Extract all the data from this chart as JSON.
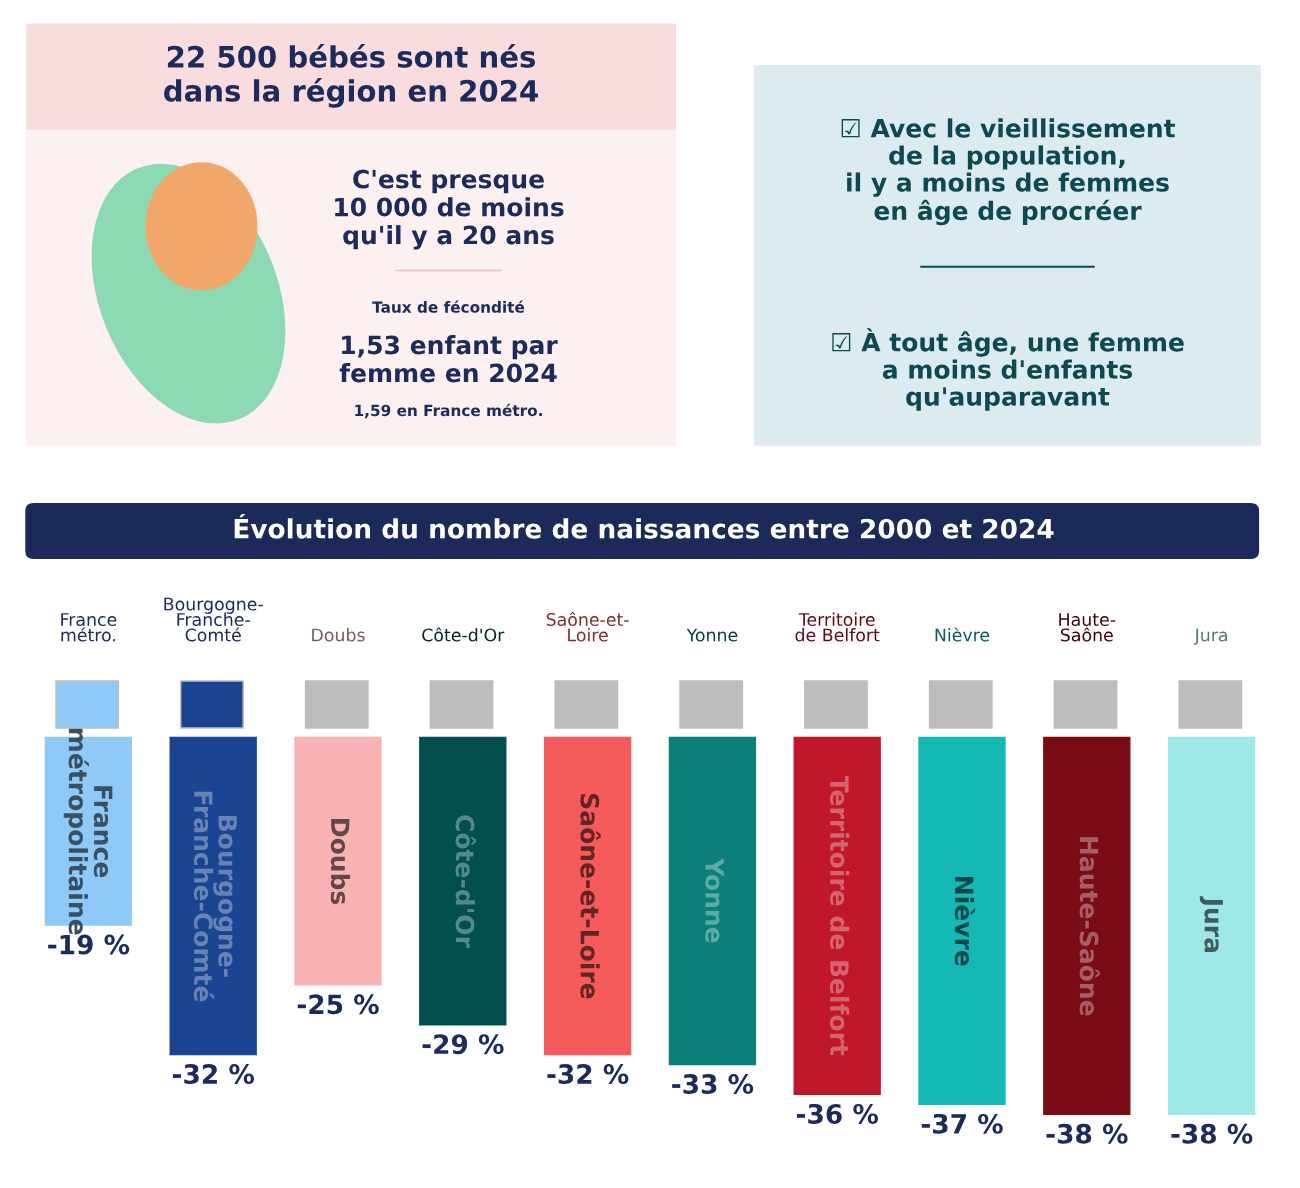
{
  "chart_data": [
    {
      "type": "other",
      "title": "22 500 bébés sont nés\ndans la région en 2024",
      "annotations": [
        "C'est presque\n10 000 de moins\nqu'il y a 20 ans",
        "Taux de fécondité",
        "1,53 enfant par\nfemme en 2024",
        "1,59 en France métro."
      ]
    },
    {
      "type": "other",
      "annotations": [
        "☑ Avec le vieillissement\nde la population,\nil y a moins de femmes\nen âge de procréer",
        "☑ À tout âge, une femme\na moins d'enfants\nqu'auparavant"
      ]
    },
    {
      "type": "bar",
      "title": "Évolution du nombre de naissances entre 2000 et 2024",
      "categories": [
        "France\nmétro.",
        "Bourgogne-\nFranche-\nComté",
        "Doubs",
        "Côte-d'Or",
        "Saône-et-\nLoire",
        "Yonne",
        "Territoire\nde Belfort",
        "Nièvre",
        "Haute-\nSaône",
        "Jura"
      ],
      "values": [
        -19,
        -32,
        -25,
        -29,
        -32,
        -33,
        -36,
        -37,
        -38,
        -38
      ],
      "colors": [
        "#8ec9f7",
        "#1b4592",
        "#f9b3b5",
        "#024f4e",
        "#f65b5b",
        "#0b7f79",
        "#c0172a",
        "#14b9b6",
        "#7a0c16",
        "#9ee8e8"
      ],
      "value_labels": [
        "-19 %",
        "-32 %",
        "-25 %",
        "-29 %",
        "-32 %",
        "-33 %",
        "-36 %",
        "-37 %",
        "-38 %",
        "-38 %"
      ],
      "annotations": [
        "France\nmétropolitaine",
        "Bourgogne-\nFranche-Comté",
        "Doubs",
        "Côte-d'Or",
        "Saône-et-Loire",
        "Yonne",
        "Territoire de Belfort",
        "Nièvre",
        "Haute-Saône",
        "Jura"
      ]
    }
  ]
}
